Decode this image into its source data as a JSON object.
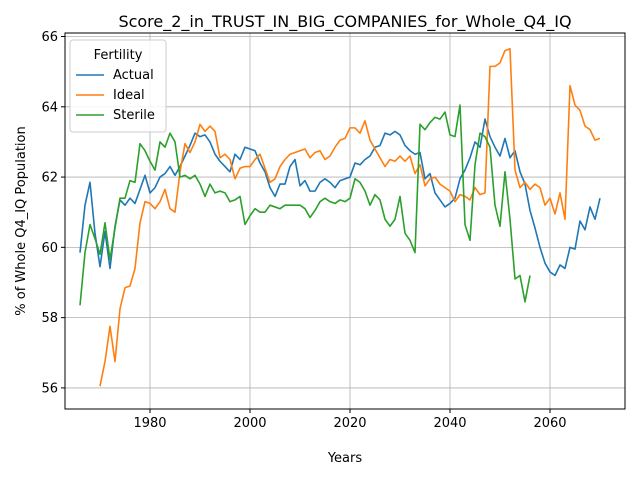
{
  "chart_data": {
    "type": "line",
    "title": "Score_2_in_TRUST_IN_BIG_COMPANIES_for_Whole_Q4_IQ",
    "xlabel": "Years",
    "ylabel": "% of Whole Q4_IQ Population",
    "xlim": [
      1963,
      2075
    ],
    "ylim": [
      55.4,
      66.1
    ],
    "xticks": [
      1980,
      2000,
      2020,
      2040,
      2060
    ],
    "yticks": [
      56,
      58,
      60,
      62,
      64,
      66
    ],
    "grid": true,
    "legend": {
      "title": "Fertility",
      "placement": "top-left"
    },
    "series": [
      {
        "name": "Actual",
        "color": "#1f77b4",
        "points": [
          [
            1966,
            59.85
          ],
          [
            1967,
            61.2
          ],
          [
            1968,
            61.85
          ],
          [
            1969,
            60.4
          ],
          [
            1970,
            59.45
          ],
          [
            1971,
            60.45
          ],
          [
            1972,
            59.4
          ],
          [
            1973,
            60.6
          ],
          [
            1974,
            61.35
          ],
          [
            1975,
            61.2
          ],
          [
            1976,
            61.4
          ],
          [
            1977,
            61.25
          ],
          [
            1978,
            61.65
          ],
          [
            1979,
            62.05
          ],
          [
            1980,
            61.55
          ],
          [
            1981,
            61.7
          ],
          [
            1982,
            62.0
          ],
          [
            1983,
            62.1
          ],
          [
            1984,
            62.3
          ],
          [
            1985,
            62.05
          ],
          [
            1986,
            62.3
          ],
          [
            1987,
            62.6
          ],
          [
            1988,
            62.9
          ],
          [
            1989,
            63.25
          ],
          [
            1990,
            63.15
          ],
          [
            1991,
            63.2
          ],
          [
            1992,
            63.0
          ],
          [
            1993,
            62.65
          ],
          [
            1994,
            62.45
          ],
          [
            1995,
            62.3
          ],
          [
            1996,
            62.15
          ],
          [
            1997,
            62.65
          ],
          [
            1998,
            62.5
          ],
          [
            1999,
            62.85
          ],
          [
            2000,
            62.8
          ],
          [
            2001,
            62.75
          ],
          [
            2002,
            62.4
          ],
          [
            2003,
            62.15
          ],
          [
            2004,
            61.7
          ],
          [
            2005,
            61.45
          ],
          [
            2006,
            61.8
          ],
          [
            2007,
            61.8
          ],
          [
            2008,
            62.3
          ],
          [
            2009,
            62.5
          ],
          [
            2010,
            61.75
          ],
          [
            2011,
            61.9
          ],
          [
            2012,
            61.6
          ],
          [
            2013,
            61.6
          ],
          [
            2014,
            61.85
          ],
          [
            2015,
            61.95
          ],
          [
            2016,
            61.85
          ],
          [
            2017,
            61.7
          ],
          [
            2018,
            61.9
          ],
          [
            2019,
            61.95
          ],
          [
            2020,
            62.0
          ],
          [
            2021,
            62.4
          ],
          [
            2022,
            62.35
          ],
          [
            2023,
            62.5
          ],
          [
            2024,
            62.6
          ],
          [
            2025,
            62.85
          ],
          [
            2026,
            62.9
          ],
          [
            2027,
            63.25
          ],
          [
            2028,
            63.2
          ],
          [
            2029,
            63.3
          ],
          [
            2030,
            63.2
          ],
          [
            2031,
            62.9
          ],
          [
            2032,
            62.75
          ],
          [
            2033,
            62.65
          ],
          [
            2034,
            62.7
          ],
          [
            2035,
            61.95
          ],
          [
            2036,
            62.1
          ],
          [
            2037,
            61.55
          ],
          [
            2038,
            61.35
          ],
          [
            2039,
            61.15
          ],
          [
            2040,
            61.25
          ],
          [
            2041,
            61.4
          ],
          [
            2042,
            61.95
          ],
          [
            2043,
            62.2
          ],
          [
            2044,
            62.55
          ],
          [
            2045,
            63.0
          ],
          [
            2046,
            62.85
          ],
          [
            2047,
            63.65
          ],
          [
            2048,
            63.15
          ],
          [
            2049,
            62.85
          ],
          [
            2050,
            62.6
          ],
          [
            2051,
            63.1
          ],
          [
            2052,
            62.55
          ],
          [
            2053,
            62.75
          ],
          [
            2054,
            62.15
          ],
          [
            2055,
            61.8
          ],
          [
            2056,
            61.05
          ],
          [
            2057,
            60.55
          ],
          [
            2058,
            60.0
          ],
          [
            2059,
            59.55
          ],
          [
            2060,
            59.3
          ],
          [
            2061,
            59.2
          ],
          [
            2062,
            59.5
          ],
          [
            2063,
            59.4
          ],
          [
            2064,
            60.0
          ],
          [
            2065,
            59.95
          ],
          [
            2066,
            60.75
          ],
          [
            2067,
            60.5
          ],
          [
            2068,
            61.15
          ],
          [
            2069,
            60.8
          ],
          [
            2070,
            61.4
          ]
        ]
      },
      {
        "name": "Ideal",
        "color": "#ff7f0e",
        "points": [
          [
            1970,
            56.05
          ],
          [
            1971,
            56.75
          ],
          [
            1972,
            57.75
          ],
          [
            1973,
            56.75
          ],
          [
            1974,
            58.25
          ],
          [
            1975,
            58.85
          ],
          [
            1976,
            58.9
          ],
          [
            1977,
            59.4
          ],
          [
            1978,
            60.7
          ],
          [
            1979,
            61.3
          ],
          [
            1980,
            61.25
          ],
          [
            1981,
            61.1
          ],
          [
            1982,
            61.3
          ],
          [
            1983,
            61.65
          ],
          [
            1984,
            61.1
          ],
          [
            1985,
            61.0
          ],
          [
            1986,
            62.15
          ],
          [
            1987,
            62.95
          ],
          [
            1988,
            62.7
          ],
          [
            1989,
            63.0
          ],
          [
            1990,
            63.5
          ],
          [
            1991,
            63.3
          ],
          [
            1992,
            63.45
          ],
          [
            1993,
            63.3
          ],
          [
            1994,
            62.55
          ],
          [
            1995,
            62.65
          ],
          [
            1996,
            62.5
          ],
          [
            1997,
            61.95
          ],
          [
            1998,
            62.25
          ],
          [
            1999,
            62.3
          ],
          [
            2000,
            62.3
          ],
          [
            2001,
            62.5
          ],
          [
            2002,
            62.65
          ],
          [
            2003,
            62.25
          ],
          [
            2004,
            61.85
          ],
          [
            2005,
            61.95
          ],
          [
            2006,
            62.3
          ],
          [
            2007,
            62.5
          ],
          [
            2008,
            62.65
          ],
          [
            2009,
            62.7
          ],
          [
            2010,
            62.75
          ],
          [
            2011,
            62.8
          ],
          [
            2012,
            62.55
          ],
          [
            2013,
            62.7
          ],
          [
            2014,
            62.75
          ],
          [
            2015,
            62.5
          ],
          [
            2016,
            62.6
          ],
          [
            2017,
            62.85
          ],
          [
            2018,
            63.05
          ],
          [
            2019,
            63.1
          ],
          [
            2020,
            63.4
          ],
          [
            2021,
            63.4
          ],
          [
            2022,
            63.25
          ],
          [
            2023,
            63.6
          ],
          [
            2024,
            63.05
          ],
          [
            2025,
            62.8
          ],
          [
            2026,
            62.55
          ],
          [
            2027,
            62.3
          ],
          [
            2028,
            62.5
          ],
          [
            2029,
            62.45
          ],
          [
            2030,
            62.6
          ],
          [
            2031,
            62.45
          ],
          [
            2032,
            62.6
          ],
          [
            2033,
            62.1
          ],
          [
            2034,
            62.35
          ],
          [
            2035,
            61.75
          ],
          [
            2036,
            61.95
          ],
          [
            2037,
            62.0
          ],
          [
            2038,
            61.8
          ],
          [
            2039,
            61.7
          ],
          [
            2040,
            61.6
          ],
          [
            2041,
            61.3
          ],
          [
            2042,
            61.5
          ],
          [
            2043,
            61.45
          ],
          [
            2044,
            61.35
          ],
          [
            2045,
            61.7
          ],
          [
            2046,
            61.5
          ],
          [
            2047,
            61.55
          ],
          [
            2048,
            65.15
          ],
          [
            2049,
            65.15
          ],
          [
            2050,
            65.25
          ],
          [
            2051,
            65.6
          ],
          [
            2052,
            65.65
          ],
          [
            2053,
            62.2
          ],
          [
            2054,
            61.7
          ],
          [
            2055,
            61.85
          ],
          [
            2056,
            61.65
          ],
          [
            2057,
            61.8
          ],
          [
            2058,
            61.7
          ],
          [
            2059,
            61.2
          ],
          [
            2060,
            61.4
          ],
          [
            2061,
            60.95
          ],
          [
            2062,
            61.55
          ],
          [
            2063,
            60.8
          ],
          [
            2064,
            64.6
          ],
          [
            2065,
            64.05
          ],
          [
            2066,
            63.9
          ],
          [
            2067,
            63.45
          ],
          [
            2068,
            63.35
          ],
          [
            2069,
            63.05
          ],
          [
            2070,
            63.1
          ]
        ]
      },
      {
        "name": "Sterile",
        "color": "#2ca02c",
        "points": [
          [
            1966,
            58.35
          ],
          [
            1967,
            59.85
          ],
          [
            1968,
            60.65
          ],
          [
            1969,
            60.25
          ],
          [
            1970,
            59.8
          ],
          [
            1971,
            60.7
          ],
          [
            1972,
            59.65
          ],
          [
            1973,
            60.55
          ],
          [
            1974,
            61.4
          ],
          [
            1975,
            61.4
          ],
          [
            1976,
            61.9
          ],
          [
            1977,
            61.85
          ],
          [
            1978,
            62.95
          ],
          [
            1979,
            62.75
          ],
          [
            1980,
            62.45
          ],
          [
            1981,
            62.2
          ],
          [
            1982,
            63.0
          ],
          [
            1983,
            62.85
          ],
          [
            1984,
            63.25
          ],
          [
            1985,
            63.0
          ],
          [
            1986,
            62.0
          ],
          [
            1987,
            62.05
          ],
          [
            1988,
            61.95
          ],
          [
            1989,
            62.05
          ],
          [
            1990,
            61.8
          ],
          [
            1991,
            61.45
          ],
          [
            1992,
            61.8
          ],
          [
            1993,
            61.55
          ],
          [
            1994,
            61.6
          ],
          [
            1995,
            61.55
          ],
          [
            1996,
            61.3
          ],
          [
            1997,
            61.35
          ],
          [
            1998,
            61.45
          ],
          [
            1999,
            60.65
          ],
          [
            2000,
            60.9
          ],
          [
            2001,
            61.1
          ],
          [
            2002,
            61.0
          ],
          [
            2003,
            61.0
          ],
          [
            2004,
            61.2
          ],
          [
            2005,
            61.15
          ],
          [
            2006,
            61.1
          ],
          [
            2007,
            61.2
          ],
          [
            2008,
            61.2
          ],
          [
            2009,
            61.2
          ],
          [
            2010,
            61.2
          ],
          [
            2011,
            61.1
          ],
          [
            2012,
            60.85
          ],
          [
            2013,
            61.05
          ],
          [
            2014,
            61.3
          ],
          [
            2015,
            61.4
          ],
          [
            2016,
            61.3
          ],
          [
            2017,
            61.25
          ],
          [
            2018,
            61.35
          ],
          [
            2019,
            61.3
          ],
          [
            2020,
            61.4
          ],
          [
            2021,
            61.95
          ],
          [
            2022,
            61.85
          ],
          [
            2023,
            61.6
          ],
          [
            2024,
            61.2
          ],
          [
            2025,
            61.5
          ],
          [
            2026,
            61.35
          ],
          [
            2027,
            60.8
          ],
          [
            2028,
            60.6
          ],
          [
            2029,
            60.8
          ],
          [
            2030,
            61.45
          ],
          [
            2031,
            60.4
          ],
          [
            2032,
            60.2
          ],
          [
            2033,
            59.85
          ],
          [
            2034,
            63.5
          ],
          [
            2035,
            63.35
          ],
          [
            2036,
            63.55
          ],
          [
            2037,
            63.7
          ],
          [
            2038,
            63.65
          ],
          [
            2039,
            63.85
          ],
          [
            2040,
            63.2
          ],
          [
            2041,
            63.15
          ],
          [
            2042,
            64.05
          ],
          [
            2043,
            60.65
          ],
          [
            2044,
            60.2
          ],
          [
            2045,
            62.35
          ],
          [
            2046,
            63.25
          ],
          [
            2047,
            63.15
          ],
          [
            2048,
            62.85
          ],
          [
            2049,
            61.2
          ],
          [
            2050,
            60.6
          ],
          [
            2051,
            62.15
          ],
          [
            2052,
            60.8
          ],
          [
            2053,
            59.1
          ],
          [
            2054,
            59.2
          ],
          [
            2055,
            58.45
          ],
          [
            2056,
            59.2
          ]
        ]
      }
    ]
  }
}
